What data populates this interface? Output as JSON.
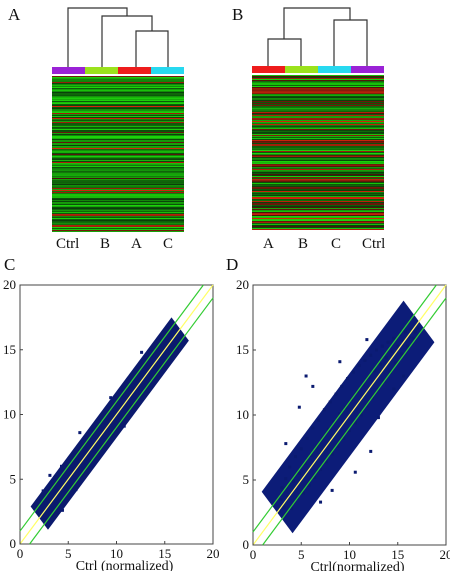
{
  "figure": {
    "panels": {
      "A": {
        "letter": "A",
        "columns": [
          "Ctrl",
          "B",
          "A",
          "C"
        ],
        "bar_colors": [
          "#9a22d6",
          "#9be21c",
          "#ee1c1c",
          "#27d9f0"
        ]
      },
      "B": {
        "letter": "B",
        "columns": [
          "A",
          "B",
          "C",
          "Ctrl"
        ],
        "bar_colors": [
          "#ee1c1c",
          "#9be21c",
          "#27d9f0",
          "#9a22d6"
        ]
      },
      "C": {
        "letter": "C"
      },
      "D": {
        "letter": "D"
      }
    }
  },
  "colors": {
    "points": "#0a1a70",
    "diagonal": "#ffff66",
    "band": "#33cc33",
    "heat_green": "#20c020",
    "heat_red": "#d02020"
  },
  "chart_data": [
    {
      "panel": "C",
      "type": "scatter",
      "title": "",
      "xlabel": "Ctrl (normalized)",
      "ylabel": "",
      "xlim": [
        0,
        20
      ],
      "ylim": [
        0,
        20
      ],
      "xticks": [
        "0",
        "5",
        "10",
        "15",
        "20"
      ],
      "yticks": [
        "0",
        "5",
        "10",
        "15",
        "20"
      ],
      "lines": [
        {
          "name": "",
          "points": [
            [
              0,
              0
            ],
            [
              20,
              20
            ]
          ],
          "color": "#ffff66"
        },
        {
          "name": "",
          "points": [
            [
              0,
              1
            ],
            [
              19,
              20
            ]
          ],
          "color": "#33cc33"
        },
        {
          "name": "",
          "points": [
            [
              1,
              0
            ],
            [
              20,
              19
            ]
          ],
          "color": "#33cc33"
        }
      ],
      "x_range": [
        2,
        16.6
      ],
      "y_range": [
        2.2,
        16.6
      ],
      "points": [
        [
          2.1,
          2.3
        ],
        [
          2.2,
          2.9
        ],
        [
          2.3,
          3.6
        ],
        [
          2.4,
          4.1
        ],
        [
          2.5,
          2.6
        ],
        [
          2.6,
          3.2
        ],
        [
          2.8,
          4.3
        ],
        [
          2.9,
          2.5
        ],
        [
          3.0,
          3.9
        ],
        [
          3.2,
          4.6
        ],
        [
          3.3,
          2.8
        ],
        [
          3.4,
          3.5
        ],
        [
          3.6,
          4.9
        ],
        [
          3.8,
          3.3
        ],
        [
          3.9,
          5.4
        ],
        [
          4.1,
          4.0
        ],
        [
          4.3,
          6.0
        ],
        [
          4.5,
          3.9
        ],
        [
          4.7,
          5.0
        ],
        [
          4.9,
          6.4
        ],
        [
          5.1,
          4.6
        ],
        [
          5.3,
          5.8
        ],
        [
          5.5,
          6.9
        ],
        [
          5.7,
          5.0
        ],
        [
          5.9,
          6.5
        ],
        [
          6.1,
          5.6
        ],
        [
          6.3,
          7.3
        ],
        [
          6.5,
          6.0
        ],
        [
          6.7,
          7.6
        ],
        [
          6.9,
          6.3
        ],
        [
          7.1,
          8.0
        ],
        [
          7.3,
          7.0
        ],
        [
          7.5,
          8.5
        ],
        [
          7.7,
          7.2
        ],
        [
          7.9,
          8.6
        ],
        [
          8.1,
          7.5
        ],
        [
          8.3,
          9.0
        ],
        [
          8.5,
          8.0
        ],
        [
          8.7,
          9.4
        ],
        [
          8.9,
          8.3
        ],
        [
          9.1,
          9.8
        ],
        [
          9.3,
          8.8
        ],
        [
          9.5,
          10.2
        ],
        [
          9.7,
          9.2
        ],
        [
          9.9,
          10.6
        ],
        [
          10.1,
          9.6
        ],
        [
          10.3,
          10.9
        ],
        [
          10.5,
          10.0
        ],
        [
          10.7,
          11.4
        ],
        [
          10.9,
          10.5
        ],
        [
          11.1,
          11.7
        ],
        [
          11.3,
          10.9
        ],
        [
          11.5,
          12.2
        ],
        [
          11.7,
          11.3
        ],
        [
          11.9,
          12.5
        ],
        [
          12.1,
          11.7
        ],
        [
          12.3,
          12.9
        ],
        [
          12.5,
          12.0
        ],
        [
          12.7,
          13.3
        ],
        [
          12.9,
          12.5
        ],
        [
          13.1,
          13.7
        ],
        [
          13.3,
          12.9
        ],
        [
          13.5,
          14.1
        ],
        [
          13.7,
          13.3
        ],
        [
          13.9,
          14.5
        ],
        [
          14.1,
          13.7
        ],
        [
          14.3,
          14.9
        ],
        [
          14.5,
          14.1
        ],
        [
          14.7,
          15.3
        ],
        [
          14.9,
          14.5
        ],
        [
          15.1,
          15.7
        ],
        [
          15.3,
          14.9
        ],
        [
          15.5,
          16.0
        ],
        [
          15.7,
          15.3
        ],
        [
          15.9,
          16.3
        ],
        [
          16.1,
          15.8
        ],
        [
          16.3,
          16.5
        ],
        [
          16.5,
          16.1
        ],
        [
          6.2,
          8.6
        ],
        [
          9.4,
          11.3
        ],
        [
          12.6,
          14.8
        ],
        [
          7.6,
          6.1
        ],
        [
          4.4,
          2.6
        ],
        [
          10.8,
          9.1
        ],
        [
          3.1,
          5.3
        ],
        [
          5.8,
          4.2
        ]
      ]
    },
    {
      "panel": "D",
      "type": "scatter",
      "title": "",
      "xlabel": "Ctrl(normalized)",
      "ylabel": "",
      "xlim": [
        0,
        20
      ],
      "ylim": [
        0,
        20
      ],
      "xticks": [
        "0",
        "5",
        "10",
        "15",
        "20"
      ],
      "yticks": [
        "0",
        "5",
        "10",
        "15",
        "20"
      ],
      "lines": [
        {
          "name": "",
          "points": [
            [
              0,
              0
            ],
            [
              20,
              20
            ]
          ],
          "color": "#ffff66"
        },
        {
          "name": "",
          "points": [
            [
              0,
              1
            ],
            [
              19,
              20
            ]
          ],
          "color": "#33cc33"
        },
        {
          "name": "",
          "points": [
            [
              1,
              0
            ],
            [
              20,
              19
            ]
          ],
          "color": "#33cc33"
        }
      ],
      "x_range": [
        2.5,
        17.2
      ],
      "y_range": [
        2.4,
        17.0
      ],
      "points": [
        [
          2.7,
          2.6
        ],
        [
          2.9,
          3.5
        ],
        [
          3.0,
          4.4
        ],
        [
          3.2,
          2.9
        ],
        [
          3.4,
          5.1
        ],
        [
          3.6,
          3.7
        ],
        [
          3.8,
          6.0
        ],
        [
          4.0,
          2.8
        ],
        [
          4.2,
          4.9
        ],
        [
          4.4,
          6.8
        ],
        [
          4.6,
          3.6
        ],
        [
          4.8,
          5.5
        ],
        [
          5.0,
          7.4
        ],
        [
          5.2,
          4.0
        ],
        [
          5.4,
          6.3
        ],
        [
          5.6,
          8.2
        ],
        [
          5.8,
          4.6
        ],
        [
          6.0,
          6.9
        ],
        [
          6.2,
          9.0
        ],
        [
          6.4,
          5.2
        ],
        [
          6.6,
          7.6
        ],
        [
          6.8,
          9.6
        ],
        [
          7.0,
          5.8
        ],
        [
          7.2,
          8.2
        ],
        [
          7.4,
          10.4
        ],
        [
          7.6,
          6.4
        ],
        [
          7.8,
          8.9
        ],
        [
          8.0,
          11.0
        ],
        [
          8.2,
          7.0
        ],
        [
          8.4,
          9.5
        ],
        [
          8.6,
          11.6
        ],
        [
          8.8,
          7.6
        ],
        [
          9.0,
          10.1
        ],
        [
          9.2,
          12.2
        ],
        [
          9.4,
          8.2
        ],
        [
          9.6,
          10.6
        ],
        [
          9.8,
          12.8
        ],
        [
          10.0,
          8.8
        ],
        [
          10.2,
          11.2
        ],
        [
          10.4,
          13.3
        ],
        [
          10.6,
          9.4
        ],
        [
          10.8,
          11.8
        ],
        [
          11.0,
          13.8
        ],
        [
          11.2,
          10.0
        ],
        [
          11.4,
          12.3
        ],
        [
          11.6,
          14.2
        ],
        [
          11.8,
          10.7
        ],
        [
          12.0,
          12.9
        ],
        [
          12.2,
          14.6
        ],
        [
          12.4,
          11.3
        ],
        [
          12.6,
          13.4
        ],
        [
          12.8,
          15.0
        ],
        [
          13.0,
          12.0
        ],
        [
          13.2,
          13.9
        ],
        [
          13.4,
          15.3
        ],
        [
          13.6,
          12.6
        ],
        [
          13.8,
          14.4
        ],
        [
          14.0,
          15.6
        ],
        [
          14.2,
          13.3
        ],
        [
          14.4,
          14.9
        ],
        [
          14.6,
          15.9
        ],
        [
          14.8,
          14.0
        ],
        [
          15.0,
          15.3
        ],
        [
          15.2,
          16.2
        ],
        [
          15.4,
          14.7
        ],
        [
          15.6,
          15.7
        ],
        [
          15.8,
          16.4
        ],
        [
          16.0,
          15.3
        ],
        [
          16.2,
          16.0
        ],
        [
          16.4,
          16.6
        ],
        [
          16.6,
          15.9
        ],
        [
          16.8,
          16.4
        ],
        [
          17.0,
          16.7
        ],
        [
          5.5,
          13.0
        ],
        [
          6.2,
          12.2
        ],
        [
          4.8,
          10.6
        ],
        [
          9.0,
          14.1
        ],
        [
          11.8,
          15.8
        ],
        [
          10.6,
          5.6
        ],
        [
          13.0,
          9.8
        ],
        [
          14.6,
          12.0
        ],
        [
          8.2,
          4.2
        ],
        [
          7.0,
          3.3
        ],
        [
          15.6,
          13.0
        ],
        [
          3.4,
          7.8
        ],
        [
          12.2,
          7.2
        ]
      ]
    }
  ]
}
